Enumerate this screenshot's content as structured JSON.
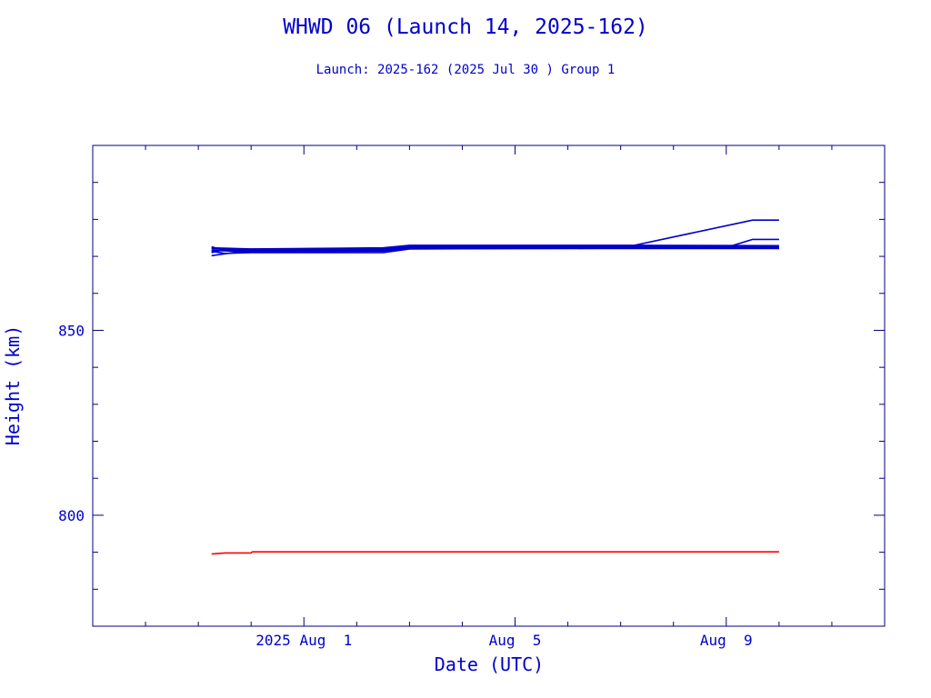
{
  "chart_data": {
    "type": "line",
    "title": "WHWD 06 (Launch 14, 2025-162)",
    "subtitle": "Launch: 2025-162  (2025 Jul 30 )  Group 1",
    "xlabel": "Date (UTC)",
    "ylabel": "Height (km)",
    "x_tick_labels": [
      {
        "x": "2025-08-01",
        "label": "2025 Aug  1"
      },
      {
        "x": "2025-08-05",
        "label": "Aug  5"
      },
      {
        "x": "2025-08-09",
        "label": "Aug  9"
      }
    ],
    "y_tick_labels": [
      {
        "y": 800,
        "label": "800"
      },
      {
        "y": 850,
        "label": "850"
      }
    ],
    "xlim": [
      "2025-07-28",
      "2025-08-12"
    ],
    "ylim": [
      770,
      900
    ],
    "grid": false,
    "colors": {
      "primary": "#0000cc",
      "other": "#ff0000",
      "axes": "#000080",
      "text": "#0000cc"
    },
    "series": [
      {
        "color": "#0000cc",
        "points": [
          [
            "2025-07-30T06:00",
            871.4
          ],
          [
            "2025-07-30T12:00",
            870.8
          ],
          [
            "2025-07-31T00:00",
            871.0
          ],
          [
            "2025-08-02T12:00",
            871.0
          ],
          [
            "2025-08-03T00:00",
            872.0
          ],
          [
            "2025-08-07T00:00",
            872.2
          ],
          [
            "2025-08-09T12:00",
            879.8
          ],
          [
            "2025-08-10T00:00",
            879.8
          ]
        ]
      },
      {
        "color": "#0000cc",
        "points": [
          [
            "2025-07-30T06:00",
            872.6
          ],
          [
            "2025-07-30T12:00",
            871.6
          ],
          [
            "2025-08-02T12:00",
            871.6
          ],
          [
            "2025-08-03T00:00",
            872.4
          ],
          [
            "2025-08-09T00:00",
            872.4
          ],
          [
            "2025-08-09T12:00",
            874.6
          ],
          [
            "2025-08-10T00:00",
            874.6
          ]
        ]
      },
      {
        "color": "#0000cc",
        "points": [
          [
            "2025-07-30T06:00",
            870.2
          ],
          [
            "2025-07-30T18:00",
            871.2
          ],
          [
            "2025-08-02T12:00",
            871.4
          ],
          [
            "2025-08-03T00:00",
            872.3
          ],
          [
            "2025-08-10T00:00",
            872.3
          ]
        ]
      },
      {
        "color": "#0000cc",
        "points": [
          [
            "2025-07-30T06:00",
            872.0
          ],
          [
            "2025-07-31T00:00",
            871.8
          ],
          [
            "2025-08-02T12:00",
            872.0
          ],
          [
            "2025-08-03T00:00",
            872.6
          ],
          [
            "2025-08-10T00:00",
            872.6
          ]
        ]
      },
      {
        "color": "#0000cc",
        "points": [
          [
            "2025-07-30T06:00",
            871.6
          ],
          [
            "2025-07-31T00:00",
            871.3
          ],
          [
            "2025-08-02T12:00",
            871.6
          ],
          [
            "2025-08-03T00:00",
            872.1
          ],
          [
            "2025-08-10T00:00",
            872.1
          ]
        ]
      },
      {
        "color": "#0000cc",
        "points": [
          [
            "2025-07-30T06:00",
            871.0
          ],
          [
            "2025-07-30T12:00",
            871.9
          ],
          [
            "2025-08-02T12:00",
            872.2
          ],
          [
            "2025-08-03T00:00",
            872.8
          ],
          [
            "2025-08-10T00:00",
            872.8
          ]
        ]
      },
      {
        "color": "#0000cc",
        "points": [
          [
            "2025-07-30T06:00",
            872.3
          ],
          [
            "2025-07-31T00:00",
            872.0
          ],
          [
            "2025-08-02T12:00",
            872.3
          ],
          [
            "2025-08-03T00:00",
            873.0
          ],
          [
            "2025-08-07T00:00",
            873.0
          ],
          [
            "2025-08-10T00:00",
            872.9
          ]
        ]
      },
      {
        "color": "#0000cc",
        "points": [
          [
            "2025-07-30T12:00",
            871.5
          ],
          [
            "2025-08-02T12:00",
            871.8
          ],
          [
            "2025-08-03T00:00",
            872.5
          ],
          [
            "2025-08-10T00:00",
            872.4
          ]
        ]
      },
      {
        "color": "#ff0000",
        "points": [
          [
            "2025-07-30T06:00",
            789.5
          ],
          [
            "2025-07-30T12:00",
            789.8
          ],
          [
            "2025-07-31T00:00",
            789.8
          ],
          [
            "2025-07-31T00:30",
            790.1
          ],
          [
            "2025-08-10T00:00",
            790.1
          ]
        ]
      }
    ]
  }
}
